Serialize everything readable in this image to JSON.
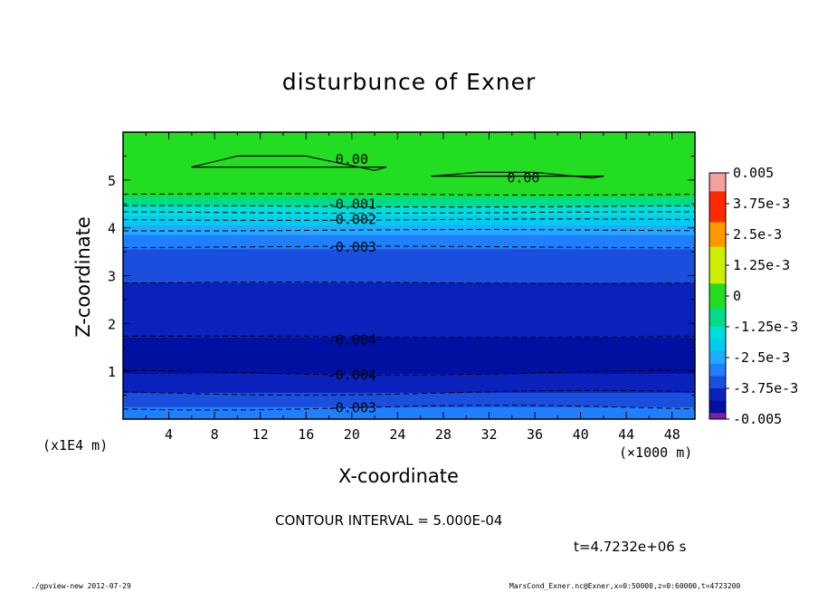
{
  "chart_data": {
    "type": "contour",
    "title": "disturbunce of Exner",
    "xlabel": "X-coordinate",
    "ylabel": "Z-coordinate",
    "x_unit": "(×1000 m)",
    "y_unit": "(x1E4 m)",
    "x_ticks": [
      "4",
      "8",
      "12",
      "16",
      "20",
      "24",
      "28",
      "32",
      "36",
      "40",
      "44",
      "48"
    ],
    "y_ticks": [
      "1",
      "2",
      "3",
      "4",
      "5"
    ],
    "xlim": [
      0,
      50
    ],
    "ylim": [
      0,
      6
    ],
    "contour_interval_text": "CONTOUR INTERVAL = 5.000E-04",
    "time_text": "t=4.7232e+06 s",
    "colorbar": {
      "labels": [
        "0.005",
        "3.75e-3",
        "2.5e-3",
        "1.25e-3",
        "0",
        "-1.25e-3",
        "-2.5e-3",
        "-3.75e-3",
        "-0.005"
      ],
      "range": [
        -0.005,
        0.005
      ]
    },
    "contour_labels": [
      {
        "text": "0.00",
        "x": 20,
        "z": 5.43
      },
      {
        "text": "0.00",
        "x": 35,
        "z": 5.04
      },
      {
        "text": "-0.001",
        "x": 20,
        "z": 4.5
      },
      {
        "text": "-0.002",
        "x": 20,
        "z": 4.17
      },
      {
        "text": "-0.003",
        "x": 20,
        "z": 3.6
      },
      {
        "text": "-0.004",
        "x": 20,
        "z": 1.66
      },
      {
        "text": "-0.004",
        "x": 20,
        "z": 0.92
      },
      {
        "text": "-0.003",
        "x": 20,
        "z": 0.24
      }
    ],
    "layers": [
      {
        "z0": 4.65,
        "z1": 6.0,
        "value": 0.0
      },
      {
        "z0": 4.45,
        "z1": 4.65,
        "value": -0.001
      },
      {
        "z0": 4.25,
        "z1": 4.45,
        "value": -0.0015
      },
      {
        "z0": 4.05,
        "z1": 4.25,
        "value": -0.002
      },
      {
        "z0": 3.85,
        "z1": 4.05,
        "value": -0.0025
      },
      {
        "z0": 3.55,
        "z1": 3.85,
        "value": -0.003
      },
      {
        "z0": 2.85,
        "z1": 3.55,
        "value": -0.0035
      },
      {
        "z0": 1.7,
        "z1": 2.85,
        "value": -0.004
      },
      {
        "z0": 0.95,
        "z1": 1.7,
        "value": -0.0045
      },
      {
        "z0": 0.55,
        "z1": 0.95,
        "value": -0.004
      },
      {
        "z0": 0.25,
        "z1": 0.55,
        "value": -0.0035
      },
      {
        "z0": 0.0,
        "z1": 0.25,
        "value": -0.003
      }
    ],
    "dashed_levels_z": [
      4.7,
      4.45,
      4.32,
      4.17,
      3.95,
      3.6,
      2.85,
      1.72,
      0.97,
      0.55,
      0.24
    ],
    "zero_contours": [
      {
        "x": [
          6,
          10,
          16,
          22,
          23
        ],
        "z": [
          5.27,
          5.5,
          5.5,
          5.2,
          5.27
        ]
      },
      {
        "x": [
          27,
          31,
          36,
          41,
          42
        ],
        "z": [
          5.08,
          5.16,
          5.16,
          5.04,
          5.08
        ]
      }
    ],
    "colors": {
      "0.005": "#f2a0a0",
      "0.00375": "#ff2a00",
      "0.0025": "#ff9900",
      "0.00125": "#ccee00",
      "0": "#22dd22",
      "-0.001": "#00dd88",
      "-0.0015": "#00dddd",
      "-0.002": "#00ccee",
      "-0.0025": "#22aaff",
      "-0.003": "#1f7fff",
      "-0.0035": "#1a4fdd",
      "-0.004": "#0a22bb",
      "-0.0045": "#0010a0",
      "-0.005": "#7a20a0"
    }
  },
  "footer": {
    "left": "./gpview-new  2012-07-29",
    "right": "MarsCond_Exner.nc@Exner,x=0:50000,z=0:60000,t=4723200"
  }
}
